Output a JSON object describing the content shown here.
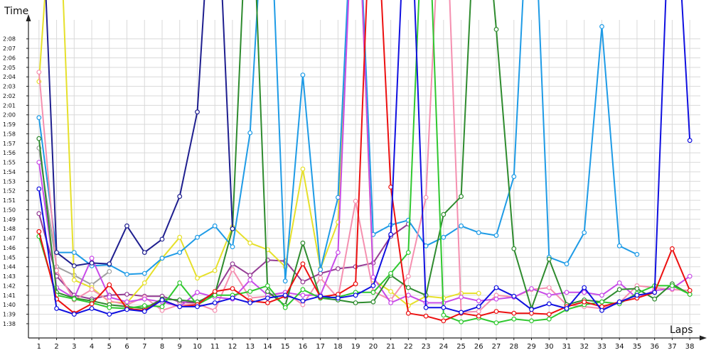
{
  "chart_data": {
    "type": "line",
    "xlabel": "Laps",
    "ylabel": "Time",
    "grid": true,
    "legend": "none",
    "xlim": [
      0.4,
      38.6
    ],
    "ylim": [
      "1:36.5",
      "2:10.0"
    ],
    "x": [
      1,
      2,
      3,
      4,
      5,
      6,
      7,
      8,
      9,
      10,
      11,
      12,
      13,
      14,
      15,
      16,
      17,
      18,
      19,
      20,
      21,
      22,
      23,
      24,
      25,
      26,
      27,
      28,
      29,
      30,
      31,
      32,
      33,
      34,
      35,
      36,
      37,
      38
    ],
    "y_ticks": [
      "1:38",
      "1:39",
      "1:40",
      "1:41",
      "1:42",
      "1:43",
      "1:44",
      "1:45",
      "1:46",
      "1:47",
      "1:48",
      "1:49",
      "1:50",
      "1:51",
      "1:52",
      "1:53",
      "1:54",
      "1:55",
      "1:56",
      "1:57",
      "1:58",
      "1:59",
      "2:00",
      "2:01",
      "2:02",
      "2:03",
      "2:04",
      "2:05",
      "2:06",
      "2:07",
      "2:08"
    ],
    "series": [
      {
        "color": "#a0a0a0",
        "values": [
          "1:56.5",
          "1:44.0",
          "1:43.1",
          "1:42.1",
          "1:43.5",
          null,
          null,
          null,
          null,
          null,
          null,
          null,
          null,
          null,
          null,
          null,
          null,
          null,
          null,
          null,
          null,
          null,
          null,
          null,
          null,
          null,
          null,
          null,
          null,
          null,
          null,
          null,
          null,
          null,
          null,
          null,
          null,
          null
        ]
      },
      {
        "color": "#953d95",
        "values": [
          "1:49.6",
          "1:43.0",
          "1:41.0",
          "1:40.6",
          "1:41.0",
          "1:41.1",
          "1:40.9",
          "1:40.9",
          "1:40.3",
          "1:40.2",
          "1:41.3",
          "1:44.3",
          "1:43.1",
          "1:44.7",
          "1:44.6",
          "1:42.4",
          "1:43.3",
          "1:43.8",
          "1:44.0",
          "1:44.4",
          "1:47.2",
          "1:48.5",
          null,
          null,
          null,
          null,
          null,
          null,
          null,
          null,
          null,
          null,
          null,
          null,
          null,
          null,
          null,
          null
        ]
      },
      {
        "color": "#e6e02a",
        "values": [
          "2:03.5",
          "2:30.0",
          "1:42.6",
          "1:41.8",
          "1:40.3",
          "1:40.2",
          "1:42.3",
          "1:44.9",
          "1:47.1",
          "1:42.8",
          "1:43.6",
          "1:48.2",
          "1:46.5",
          "1:45.8",
          "1:44.0",
          "1:54.3",
          "1:43.8",
          "1:48.7",
          "2:30.0",
          "1:42.6",
          "1:41.4",
          "1:39.9",
          "1:40.9",
          "1:40.7",
          "1:41.2",
          "1:41.2",
          null,
          null,
          null,
          null,
          null,
          null,
          null,
          null,
          null,
          null,
          null,
          null
        ]
      },
      {
        "color": "#1e9be6",
        "values": [
          "1:59.7",
          "1:45.5",
          "1:45.5",
          "1:44.1",
          "1:44.2",
          "1:43.2",
          "1:43.3",
          "1:44.9",
          "1:45.5",
          "1:47.1",
          "1:48.3",
          "1:46.1",
          "1:58.1",
          "2:30.0",
          "1:42.5",
          "2:04.2",
          "1:43.7",
          "1:51.3",
          "2:30.0",
          "1:47.4",
          "1:48.4",
          "1:48.9",
          "1:46.2",
          "1:47.1",
          "1:48.3",
          "1:47.6",
          "1:47.3",
          "1:53.5",
          "2:30.0",
          "1:45.0",
          "1:44.3",
          "1:47.6",
          "2:09.3",
          "1:46.2",
          "1:45.3",
          null,
          null,
          null
        ]
      },
      {
        "color": "#f590b0",
        "values": [
          "2:04.5",
          "1:43.6",
          "1:40.5",
          "1:41.6",
          "1:40.4",
          "1:40.0",
          "1:40.8",
          "1:39.4",
          "1:40.0",
          "1:40.1",
          "1:39.4",
          "1:43.7",
          "1:40.7",
          "1:40.9",
          "1:41.3",
          "1:40.0",
          "1:42.8",
          "1:40.7",
          "1:50.9",
          "1:41.4",
          "1:40.5",
          "1:43.0",
          "1:51.3",
          "2:30.0",
          "1:39.2",
          "1:39.3",
          "1:41.0",
          "1:40.8",
          "1:41.6",
          "1:41.8",
          "1:40.0",
          "1:39.8",
          "1:39.6",
          "1:40.2",
          "1:42.0",
          "1:41.8",
          "1:41.6",
          "1:41.5"
        ]
      },
      {
        "color": "#c84be8",
        "values": [
          "1:55.0",
          "1:41.8",
          "1:40.7",
          "1:44.9",
          "1:40.8",
          "1:40.3",
          "1:40.6",
          "1:40.3",
          "1:39.8",
          "1:41.3",
          "1:40.8",
          "1:40.6",
          "1:42.6",
          "1:41.0",
          "1:41.3",
          "1:41.0",
          "1:41.0",
          "1:45.5",
          "2:30.0",
          "1:42.9",
          "1:40.2",
          "1:41.0",
          "1:40.2",
          "1:40.2",
          "1:40.8",
          "1:40.4",
          "1:40.6",
          "1:40.8",
          "1:41.7",
          "1:41.0",
          "1:41.3",
          "1:41.3",
          "1:41.0",
          "1:42.3",
          "1:40.7",
          "1:41.5",
          "1:41.7",
          "1:43.0"
        ]
      },
      {
        "color": "#2e8b2e",
        "values": [
          "1:57.5",
          "1:41.3",
          "1:40.7",
          "1:40.4",
          "1:40.0",
          "1:39.8",
          "1:39.6",
          "1:40.6",
          "1:40.5",
          "1:40.3",
          "1:41.1",
          "1:48.0",
          "2:30.0",
          "1:41.4",
          "1:39.9",
          "1:46.5",
          "1:40.7",
          "1:40.5",
          "1:40.2",
          "1:40.3",
          "1:43.1",
          "1:41.8",
          "1:41.0",
          "1:49.5",
          "1:51.4",
          "2:30.0",
          "2:09.0",
          "1:45.9",
          "1:39.6",
          "1:44.8",
          "1:40.0",
          "1:40.5",
          "1:40.3",
          "1:41.6",
          "1:41.7",
          "1:40.6",
          "1:42.2",
          "1:41.1"
        ]
      },
      {
        "color": "#2fc82f",
        "values": [
          "1:47.2",
          "1:41.0",
          "1:40.6",
          "1:40.2",
          "1:39.7",
          "1:39.6",
          "1:39.9",
          "1:39.8",
          "1:42.3",
          "1:40.0",
          "1:41.0",
          "1:41.0",
          "1:41.4",
          "1:42.0",
          "1:39.7",
          "1:41.6",
          "1:40.7",
          "1:40.8",
          "1:41.3",
          "1:41.3",
          "1:43.3",
          "1:45.5",
          "2:30.0",
          "1:38.9",
          "1:38.2",
          "1:38.6",
          "1:38.1",
          "1:38.5",
          "1:38.3",
          "1:38.5",
          "1:39.5",
          "1:40.0",
          "1:40.3",
          "1:40.1",
          "1:41.2",
          "1:42.0",
          "1:42.0",
          "1:41.1"
        ]
      },
      {
        "color": "#ec1010",
        "values": [
          "1:47.7",
          "1:40.6",
          "1:39.1",
          "1:40.1",
          "1:42.1",
          "1:39.6",
          "1:39.4",
          "1:40.5",
          "1:39.8",
          "1:40.0",
          "1:41.4",
          "1:41.7",
          "1:40.4",
          "1:40.2",
          "1:40.9",
          "1:44.3",
          "1:40.8",
          "1:41.1",
          "1:42.2",
          "2:30.0",
          "1:52.4",
          "1:39.1",
          "1:38.8",
          "1:38.3",
          "1:39.1",
          "1:38.8",
          "1:39.3",
          "1:39.1",
          "1:39.1",
          "1:39.0",
          "1:39.8",
          "1:40.3",
          "1:39.8",
          "1:40.3",
          "1:40.7",
          "1:41.3",
          "1:45.9",
          "1:41.5"
        ]
      },
      {
        "color": "#1010e0",
        "values": [
          "1:52.2",
          "1:39.6",
          "1:39.0",
          "1:39.6",
          "1:39.0",
          "1:39.5",
          "1:39.3",
          "1:40.5",
          "1:39.8",
          "1:39.8",
          "1:40.2",
          "1:40.7",
          "1:40.2",
          "1:40.7",
          "1:41.0",
          "1:40.4",
          "1:40.9",
          "1:40.7",
          "1:41.0",
          "1:42.0",
          "1:47.4",
          "2:30.0",
          "1:39.7",
          "1:39.7",
          "1:39.2",
          "1:39.8",
          "1:41.8",
          "1:40.9",
          "1:39.5",
          "1:40.1",
          "1:39.6",
          "1:41.8",
          "1:39.4",
          "1:40.3",
          "1:41.0",
          "1:41.3",
          "2:30.0",
          "1:57.3"
        ]
      },
      {
        "color": "#1f1f8f",
        "values": [
          "2:30.0",
          "1:45.5",
          "1:44.1",
          "1:44.4",
          "1:44.3",
          "1:48.3",
          "1:45.5",
          "1:46.9",
          "1:51.4",
          "2:00.3",
          "2:30.0",
          "1:48.0",
          null,
          null,
          null,
          null,
          null,
          null,
          null,
          null,
          null,
          null,
          null,
          null,
          null,
          null,
          null,
          null,
          null,
          null,
          null,
          null,
          null,
          null,
          null,
          null,
          null,
          null
        ]
      }
    ]
  }
}
